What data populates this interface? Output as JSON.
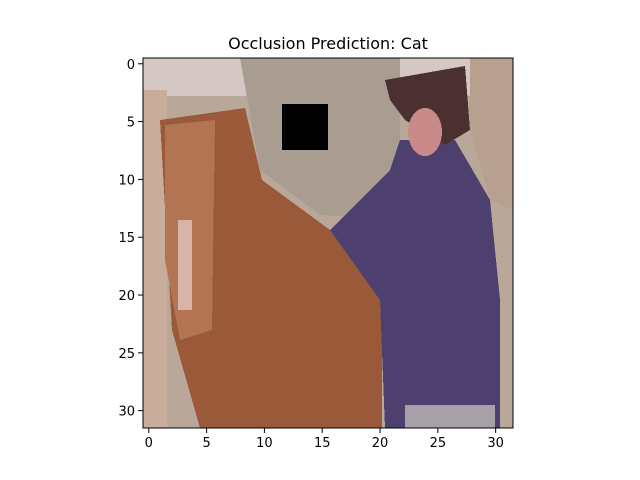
{
  "chart_data": {
    "type": "image",
    "title": "Occlusion Prediction: Cat",
    "xlim": [
      -0.5,
      31.5
    ],
    "ylim": [
      31.5,
      -0.5
    ],
    "xticks": [
      0,
      5,
      10,
      15,
      20,
      25,
      30
    ],
    "yticks": [
      0,
      5,
      10,
      15,
      20,
      25,
      30
    ]
  }
}
